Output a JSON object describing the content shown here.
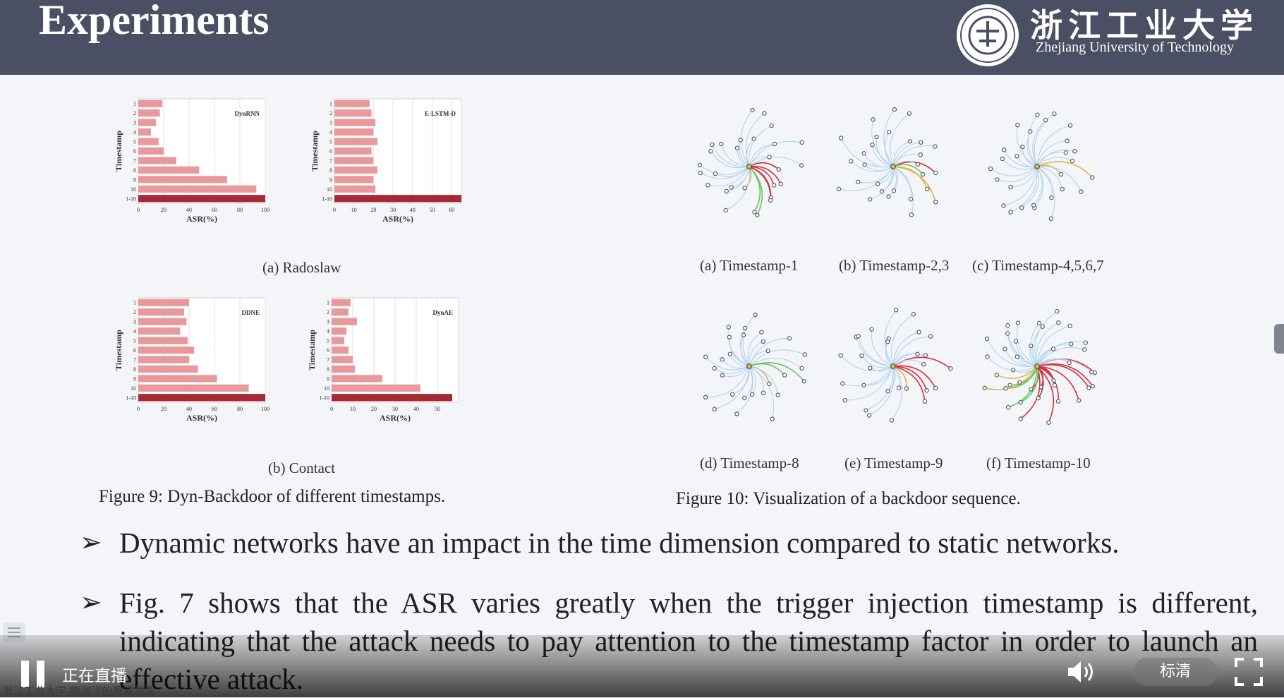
{
  "slide": {
    "title": "Experiments",
    "university_cn": "浙江工业大学",
    "university_en": "Zhejiang University of Technology"
  },
  "figure9": {
    "caption": "Figure 9: Dyn-Backdoor of different timestamps.",
    "sub_a": "(a)  Radoslaw",
    "sub_b": "(b)  Contact"
  },
  "figure10": {
    "caption": "Figure 10: Visualization of a backdoor sequence.",
    "panels": [
      {
        "label": "(a)  Timestamp-1"
      },
      {
        "label": "(b)  Timestamp-2,3"
      },
      {
        "label": "(c)  Timestamp-4,5,6,7"
      },
      {
        "label": "(d)  Timestamp-8"
      },
      {
        "label": "(e)  Timestamp-9"
      },
      {
        "label": "(f)  Timestamp-10"
      }
    ]
  },
  "bullets": [
    {
      "text": "Dynamic networks have an impact in the time dimension compared to static networks."
    },
    {
      "text": "Fig. 7 shows that the ASR varies greatly when the trigger injection timestamp is different, indicating that the attack needs to pay attention to the timestamp factor in order to launch an effective attack."
    }
  ],
  "player": {
    "live_label": "正在直播",
    "quality_label": "标清",
    "share_label": "浙江工业大学-熊海洋的屏幕共享"
  },
  "chart_data": [
    {
      "type": "bar",
      "orientation": "horizontal",
      "title": "DynRNN",
      "categories": [
        "1",
        "2",
        "3",
        "4",
        "5",
        "6",
        "7",
        "8",
        "9",
        "10",
        "1-10"
      ],
      "values": [
        19,
        17,
        14,
        10,
        16,
        20,
        30,
        48,
        70,
        93,
        100
      ],
      "xlim": [
        0,
        100
      ],
      "xticks": [
        0,
        20,
        40,
        60,
        80,
        100
      ],
      "xlabel": "ASR(%)",
      "ylabel": "Timestamp"
    },
    {
      "type": "bar",
      "orientation": "horizontal",
      "title": "E-LSTM-D",
      "categories": [
        "1",
        "2",
        "3",
        "4",
        "5",
        "6",
        "7",
        "8",
        "9",
        "10",
        "1-10"
      ],
      "values": [
        18,
        19,
        21,
        20,
        22,
        19,
        20,
        22,
        20,
        21,
        65
      ],
      "xlim": [
        0,
        65
      ],
      "xticks": [
        0,
        10,
        20,
        30,
        40,
        50,
        60
      ],
      "xlabel": "ASR(%)",
      "ylabel": "Timestamp"
    },
    {
      "type": "bar",
      "orientation": "horizontal",
      "title": "DDNE",
      "categories": [
        "1",
        "2",
        "3",
        "4",
        "5",
        "6",
        "7",
        "8",
        "9",
        "10",
        "1-10"
      ],
      "values": [
        40,
        36,
        38,
        33,
        39,
        44,
        40,
        47,
        62,
        87,
        100
      ],
      "xlim": [
        0,
        100
      ],
      "xticks": [
        0,
        20,
        40,
        60,
        80,
        100
      ],
      "xlabel": "ASR(%)",
      "ylabel": "Timestamp"
    },
    {
      "type": "bar",
      "orientation": "horizontal",
      "title": "DynAE",
      "categories": [
        "1",
        "2",
        "3",
        "4",
        "5",
        "6",
        "7",
        "8",
        "9",
        "10",
        "1-10"
      ],
      "values": [
        9,
        8,
        12,
        7,
        6,
        8,
        10,
        11,
        24,
        42,
        57
      ],
      "xlim": [
        0,
        60
      ],
      "xticks": [
        0,
        10,
        20,
        30,
        40,
        50
      ],
      "xlabel": "ASR(%)",
      "ylabel": "Timestamp"
    }
  ],
  "colors": {
    "header_bg": "#4a4f63",
    "bar_light": "#e8999c",
    "bar_dark": "#a52a35",
    "edge_blue": "#a9d0f0",
    "edge_red": "#d6303a",
    "edge_green": "#63c95a",
    "edge_orange": "#e1b347"
  }
}
